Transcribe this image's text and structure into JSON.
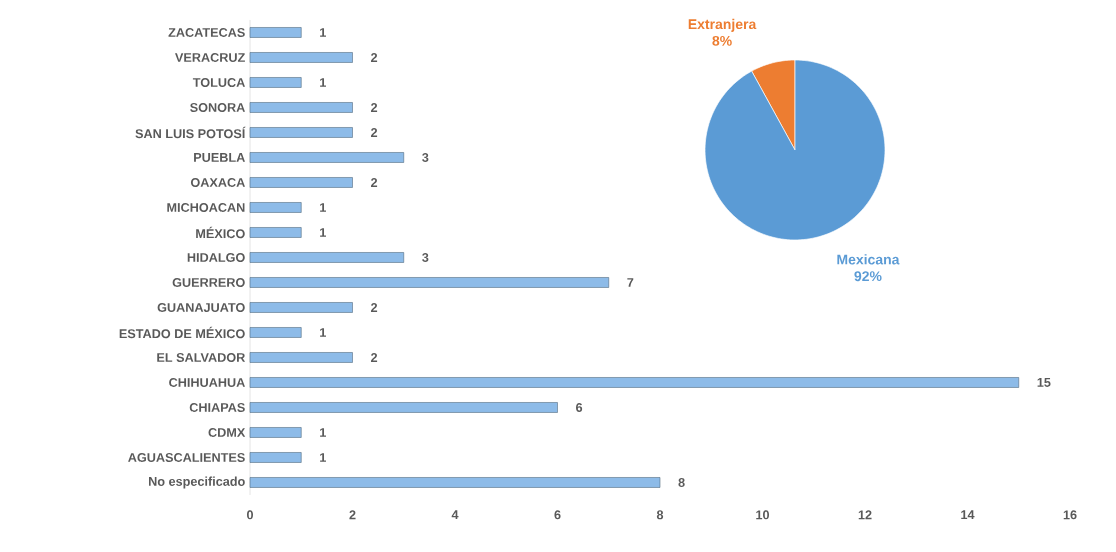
{
  "chart_data": [
    {
      "type": "bar",
      "orientation": "horizontal",
      "categories": [
        "ZACATECAS",
        "VERACRUZ",
        "TOLUCA",
        "SONORA",
        "SAN LUIS POTOSÍ",
        "PUEBLA",
        "OAXACA",
        "MICHOACAN",
        "MÉXICO",
        "HIDALGO",
        "GUERRERO",
        "GUANAJUATO",
        "ESTADO DE MÉXICO",
        "EL SALVADOR",
        "CHIHUAHUA",
        "CHIAPAS",
        "CDMX",
        "AGUASCALIENTES",
        "No especificado"
      ],
      "values": [
        1,
        2,
        1,
        2,
        2,
        3,
        2,
        1,
        1,
        3,
        7,
        2,
        1,
        2,
        15,
        6,
        1,
        1,
        8
      ],
      "color": "#8dbbe8",
      "xlim": [
        0,
        16
      ],
      "xticks": [
        0,
        2,
        4,
        6,
        8,
        10,
        12,
        14,
        16
      ],
      "data_labels": true
    },
    {
      "type": "pie",
      "categories": [
        "Extranjera",
        "Mexicana"
      ],
      "values": [
        8,
        92
      ],
      "colors": [
        "#ed7d31",
        "#5b9bd5"
      ],
      "value_labels": [
        "8%",
        "92%"
      ]
    }
  ]
}
